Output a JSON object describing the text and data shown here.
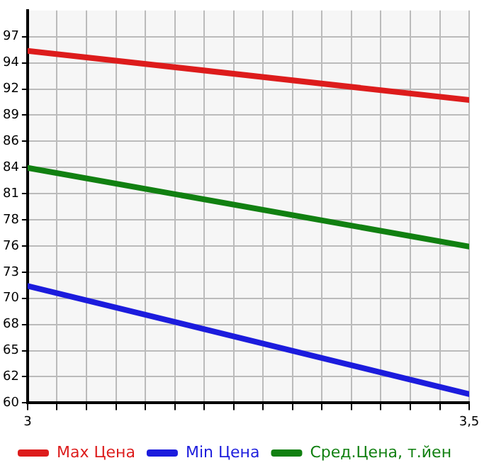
{
  "chart_data": {
    "type": "line",
    "x": [
      3,
      3.5
    ],
    "series": [
      {
        "name": "Max Цена",
        "color": "#dd1c1c",
        "values": [
          95.5,
          90.5
        ]
      },
      {
        "name": "Min Цена",
        "color": "#1c1cdd",
        "values": [
          71.6,
          60.6
        ]
      },
      {
        "name": "Сред.Цена, т.йен",
        "color": "#118011",
        "values": [
          83.6,
          75.6
        ]
      }
    ],
    "xlim": [
      3,
      3.5
    ],
    "xticks": [
      3,
      {
        "value": 3.0333,
        "label": null
      },
      {
        "value": 3.0667,
        "label": null
      },
      {
        "value": 3.1,
        "label": null
      },
      {
        "value": 3.1333,
        "label": null
      },
      {
        "value": 3.1667,
        "label": null
      },
      {
        "value": 3.2,
        "label": null
      },
      {
        "value": 3.2333,
        "label": null
      },
      {
        "value": 3.2667,
        "label": null
      },
      {
        "value": 3.3,
        "label": null
      },
      {
        "value": 3.3333,
        "label": null
      },
      {
        "value": 3.3667,
        "label": null
      },
      {
        "value": 3.4,
        "label": null
      },
      {
        "value": 3.4333,
        "label": null
      },
      {
        "value": 3.4667,
        "label": null
      },
      {
        "value": 3.5,
        "label": "3,5"
      }
    ],
    "ylim": [
      59.7,
      99.6
    ],
    "yticks": [
      {
        "value": 59.7,
        "label": "60"
      },
      {
        "value": 62.36,
        "label": "62"
      },
      {
        "value": 65.02,
        "label": "65"
      },
      {
        "value": 67.68,
        "label": "68"
      },
      {
        "value": 70.34,
        "label": "70"
      },
      {
        "value": 73,
        "label": "73"
      },
      {
        "value": 75.66,
        "label": "76"
      },
      {
        "value": 78.32,
        "label": "78"
      },
      {
        "value": 80.98,
        "label": "81"
      },
      {
        "value": 83.64,
        "label": "84"
      },
      {
        "value": 86.3,
        "label": "86"
      },
      {
        "value": 88.96,
        "label": "89"
      },
      {
        "value": 91.62,
        "label": "92"
      },
      {
        "value": 94.28,
        "label": "94"
      },
      {
        "value": 96.94,
        "label": "97"
      }
    ],
    "grid": true,
    "legend": "bottom",
    "marker": "none",
    "line_style": "solid"
  }
}
